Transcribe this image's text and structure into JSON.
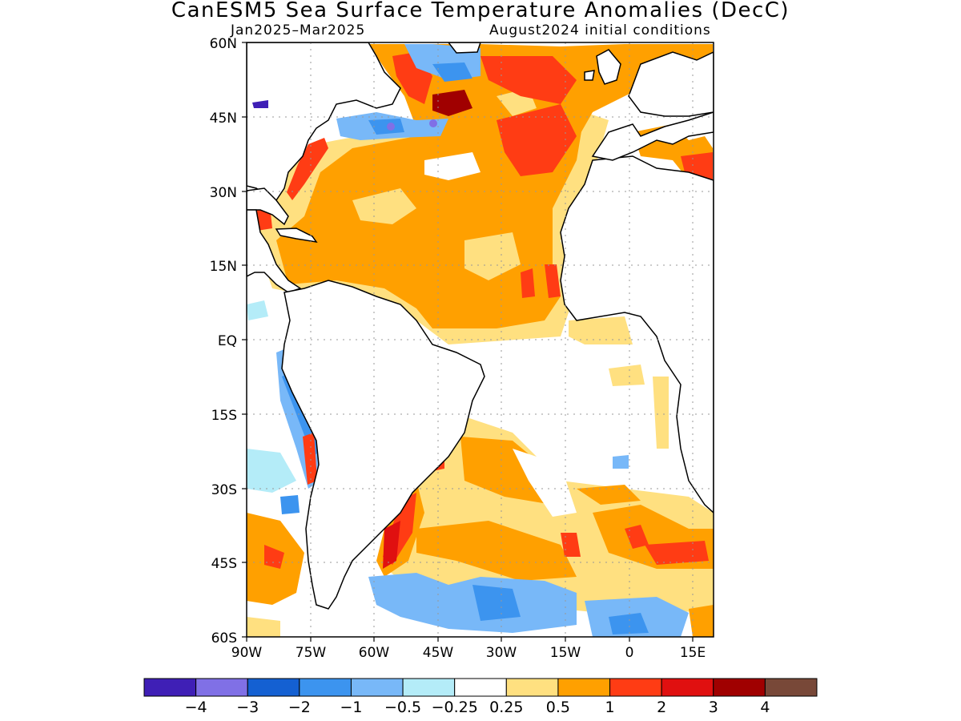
{
  "title": "CanESM5 Sea Surface Temperature Anomalies (DecC)",
  "subtitle_left": "Jan2025–Mar2025",
  "subtitle_right": "August2024 initial conditions",
  "map": {
    "region": "Atlantic Ocean",
    "lat_range": [
      -60,
      60
    ],
    "lon_range": [
      -90,
      20
    ],
    "lat_ticks": [
      "60N",
      "45N",
      "30N",
      "15N",
      "EQ",
      "15S",
      "30S",
      "45S",
      "60S"
    ],
    "lon_ticks": [
      "90W",
      "75W",
      "60W",
      "45W",
      "30W",
      "15W",
      "0",
      "15E"
    ],
    "land_color": "#ffffff",
    "coastline_color": "#000000"
  },
  "colorbar": {
    "colors": [
      "#3f1fb6",
      "#8070e6",
      "#1460d2",
      "#3c94ef",
      "#78b8f8",
      "#b4ecf8",
      "#ffffff",
      "#ffe080",
      "#ffa000",
      "#ff3c14",
      "#e01010",
      "#a00000",
      "#784838"
    ],
    "labels": [
      "−4",
      "−3",
      "−2",
      "−1",
      "−0.5",
      "−0.25",
      "0.25",
      "0.5",
      "1",
      "2",
      "3",
      "4"
    ]
  }
}
